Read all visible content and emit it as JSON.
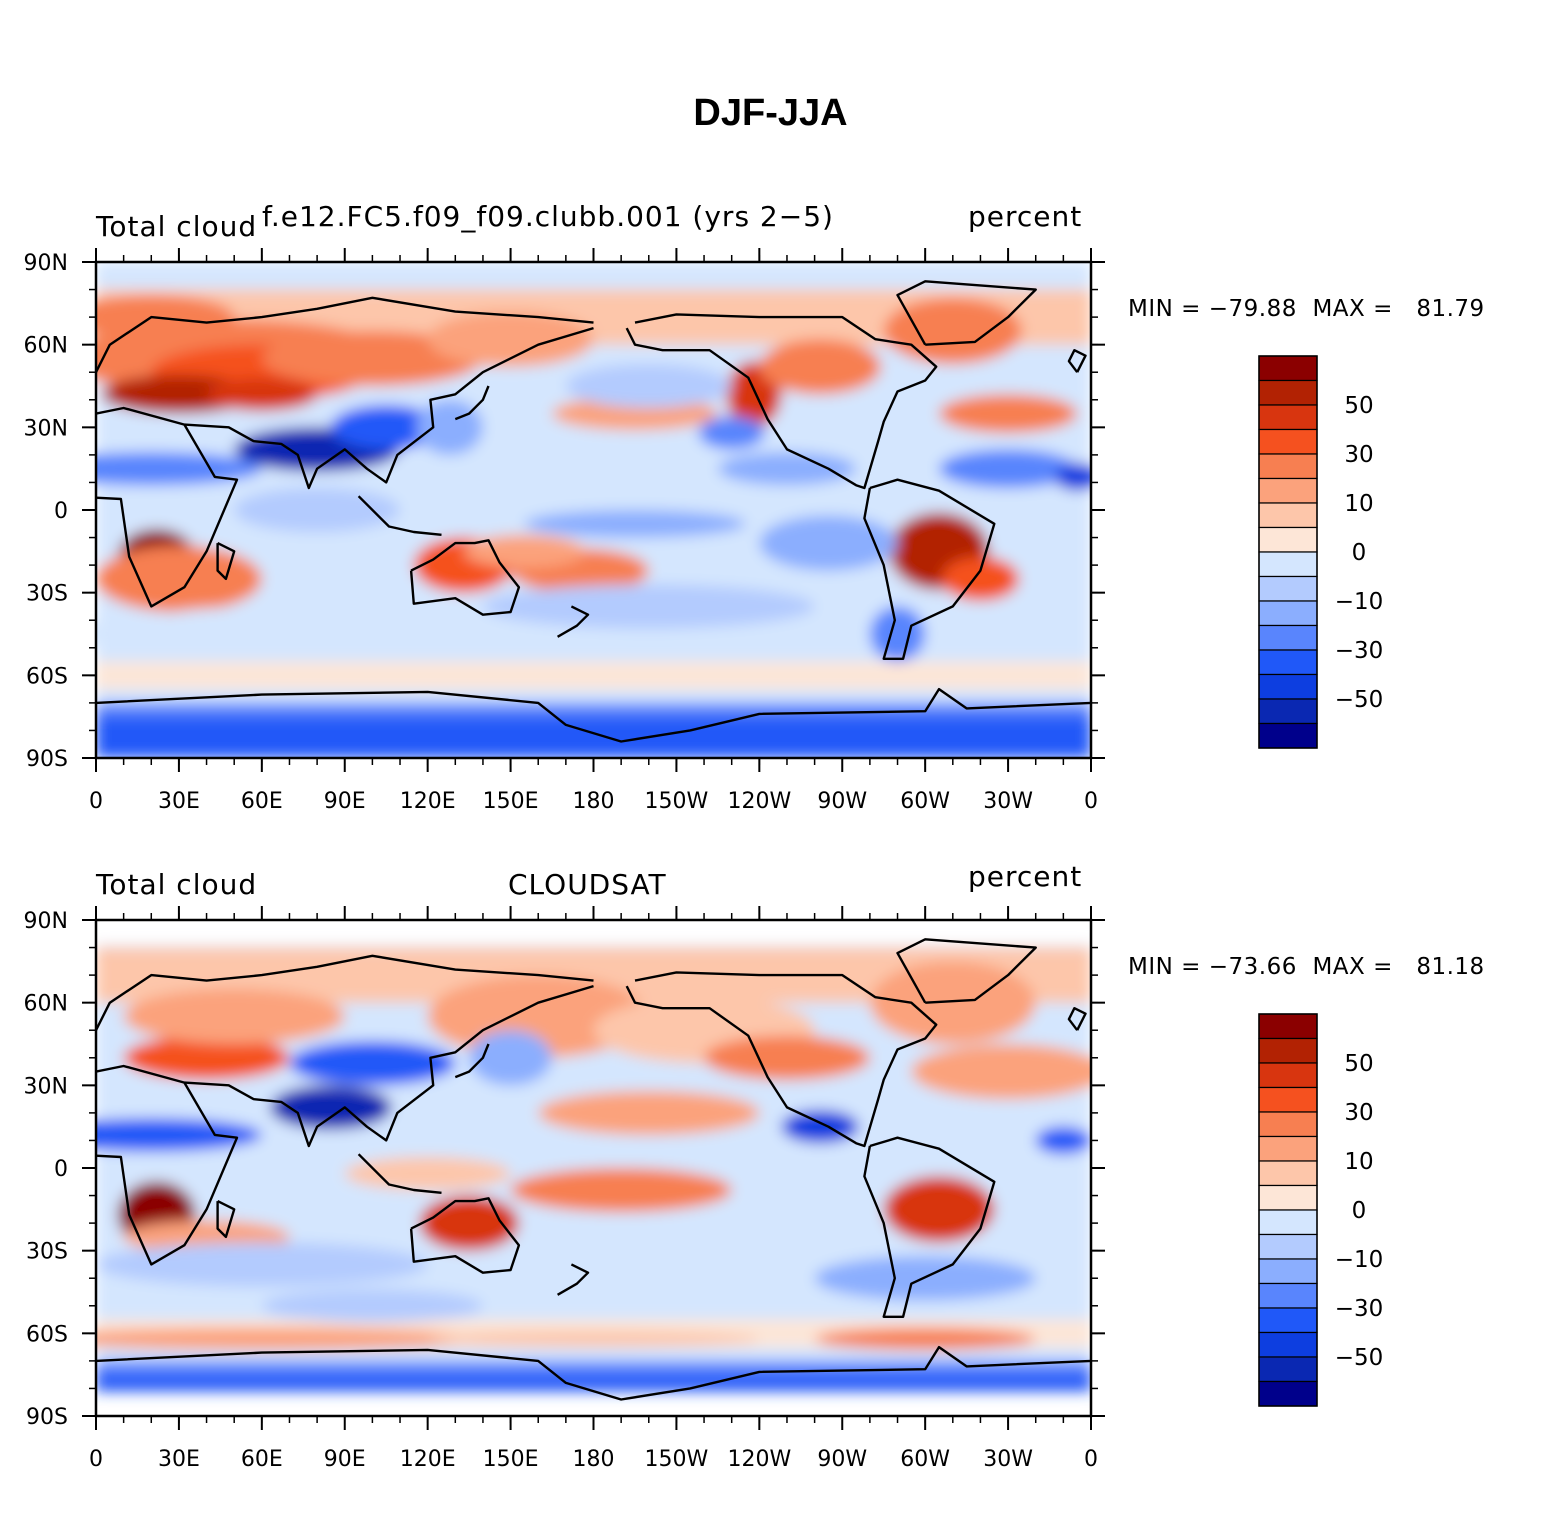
{
  "title": "DJF-JJA",
  "panels": [
    {
      "left_label": "Total cloud",
      "center_label": "f.e12.FC5.f09_f09.clubb.001 (yrs 2−5)",
      "units": "percent",
      "min_max": "MIN = −79.88  MAX =   81.79"
    },
    {
      "left_label": "Total cloud",
      "center_label": "CLOUDSAT",
      "units": "percent",
      "min_max": "MIN = −73.66  MAX =   81.18"
    }
  ],
  "lat_ticks": [
    "90N",
    "60N",
    "30N",
    "0",
    "30S",
    "60S",
    "90S"
  ],
  "lon_ticks": [
    "0",
    "30E",
    "60E",
    "90E",
    "120E",
    "150E",
    "180",
    "150W",
    "120W",
    "90W",
    "60W",
    "30W",
    "0"
  ],
  "colorbar": {
    "colors": [
      "#8b0000",
      "#b22203",
      "#d8350f",
      "#f5511f",
      "#f77f51",
      "#fba27c",
      "#fdc6aa",
      "#fde6d7",
      "#d4e6fe",
      "#b3cbfe",
      "#8baefe",
      "#5985fd",
      "#2058f8",
      "#0d3ee0",
      "#0a28b2",
      "#00008b"
    ],
    "labels": [
      "50",
      "30",
      "10",
      "0",
      "−10",
      "−30",
      "−50"
    ]
  }
}
